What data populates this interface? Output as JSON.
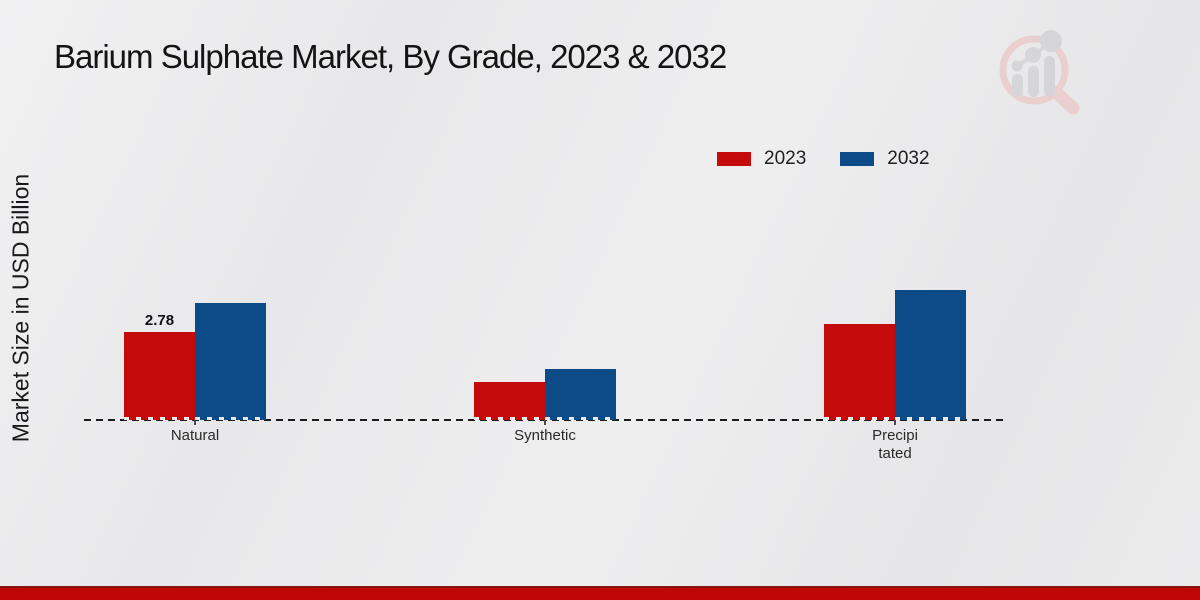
{
  "page": {
    "title": "Barium Sulphate Market, By Grade, 2023 & 2032",
    "y_axis_label": "Market Size in USD Billion"
  },
  "colors": {
    "series_2023": "#c50a0c",
    "series_2032": "#0d4b88",
    "background": "#e9e9ea",
    "baseline": "#1c1c1c",
    "footer_band": "#c10606",
    "footer_top_line": "#8a1410",
    "title_text": "#141414"
  },
  "legend": {
    "items": [
      {
        "label": "2023",
        "color": "#c50a0c"
      },
      {
        "label": "2032",
        "color": "#0d4b88"
      }
    ]
  },
  "watermark": {
    "name": "magnifier-bar-chart-logo",
    "ring_color": "#eacfce",
    "glyph_color": "#d5d5d8"
  },
  "chart_data": {
    "type": "bar",
    "title": "Barium Sulphate Market, By Grade, 2023 & 2032",
    "xlabel": "",
    "ylabel": "Market Size in USD Billion",
    "categories": [
      "Natural",
      "Synthetic",
      "Precipitated"
    ],
    "category_display_lines": [
      [
        "Natural"
      ],
      [
        "Synthetic"
      ],
      [
        "Precipi",
        "tated"
      ]
    ],
    "series": [
      {
        "name": "2023",
        "color": "#c50a0c",
        "values": [
          2.78,
          1.2,
          3.05
        ]
      },
      {
        "name": "2032",
        "color": "#0d4b88",
        "values": [
          3.7,
          1.6,
          4.1
        ]
      }
    ],
    "bar_labels": [
      {
        "series_index": 0,
        "category_index": 0,
        "text": "2.78"
      }
    ],
    "ylim": [
      0,
      4.5
    ],
    "y_ticks_visible": false,
    "grid": false,
    "baseline_style": "dashed",
    "legend_position": "top-right"
  }
}
